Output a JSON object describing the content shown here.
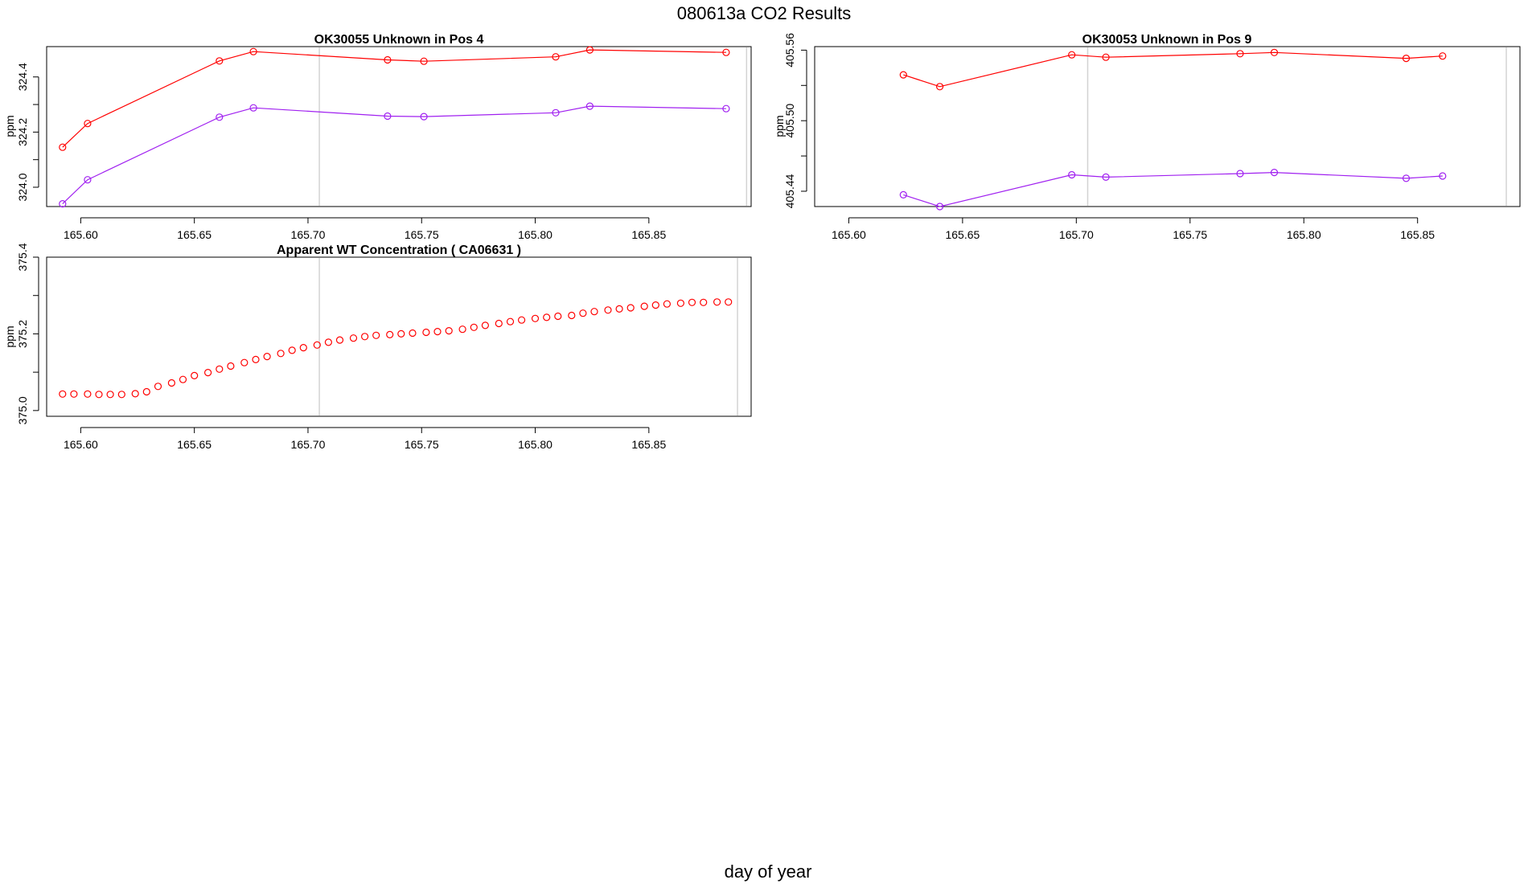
{
  "page": {
    "title": "080613a  CO2 Results",
    "x_caption": "day of year"
  },
  "chart_data": [
    {
      "id": "panel1",
      "type": "line",
      "title": "OK30055    Unknown in Pos 4",
      "xlabel": "",
      "ylabel": "ppm",
      "xlim": [
        165.585,
        165.895
      ],
      "ylim": [
        323.93,
        324.51
      ],
      "xticks": [
        165.6,
        165.65,
        165.7,
        165.75,
        165.8,
        165.85
      ],
      "xtick_labels": [
        "165.60",
        "165.65",
        "165.70",
        "165.75",
        "165.80",
        "165.85"
      ],
      "yticks": [
        324.0,
        324.2,
        324.4
      ],
      "ytick_labels": [
        "324.0",
        "324.2",
        "324.4"
      ],
      "vlines": [
        165.705,
        165.893
      ],
      "marker": "circle",
      "connected": true,
      "series": [
        {
          "name": "red",
          "color": "#ff0000",
          "x": [
            165.592,
            165.603,
            165.661,
            165.676,
            165.735,
            165.751,
            165.809,
            165.824,
            165.884
          ],
          "y": [
            324.145,
            324.231,
            324.458,
            324.492,
            324.462,
            324.457,
            324.473,
            324.498,
            324.489
          ]
        },
        {
          "name": "purple",
          "color": "#a020f0",
          "x": [
            165.592,
            165.603,
            165.661,
            165.676,
            165.735,
            165.751,
            165.809,
            165.824,
            165.884
          ],
          "y": [
            323.94,
            324.027,
            324.254,
            324.288,
            324.258,
            324.256,
            324.27,
            324.294,
            324.285
          ]
        }
      ]
    },
    {
      "id": "panel2",
      "type": "line",
      "title": "OK30053    Unknown in Pos 9",
      "xlabel": "",
      "ylabel": "ppm",
      "xlim": [
        165.585,
        165.895
      ],
      "ylim": [
        405.427,
        405.563
      ],
      "xticks": [
        165.6,
        165.65,
        165.7,
        165.75,
        165.8,
        165.85
      ],
      "xtick_labels": [
        "165.60",
        "165.65",
        "165.70",
        "165.75",
        "165.80",
        "165.85"
      ],
      "yticks": [
        405.44,
        405.5,
        405.56
      ],
      "ytick_labels": [
        "405.44",
        "405.50",
        "405.56"
      ],
      "vlines": [
        165.705,
        165.889
      ],
      "marker": "circle",
      "connected": true,
      "series": [
        {
          "name": "red",
          "color": "#ff0000",
          "x": [
            165.624,
            165.64,
            165.698,
            165.713,
            165.772,
            165.787,
            165.845,
            165.861
          ],
          "y": [
            405.539,
            405.529,
            405.556,
            405.554,
            405.557,
            405.558,
            405.553,
            405.555
          ]
        },
        {
          "name": "purple",
          "color": "#a020f0",
          "x": [
            165.624,
            165.64,
            165.698,
            165.713,
            165.772,
            165.787,
            165.845,
            165.861
          ],
          "y": [
            405.437,
            405.427,
            405.454,
            405.452,
            405.455,
            405.456,
            405.451,
            405.453
          ]
        }
      ]
    },
    {
      "id": "panel3",
      "type": "scatter",
      "title": "Apparent WT Concentration ( CA06631 )",
      "xlabel": "",
      "ylabel": "ppm",
      "xlim": [
        165.585,
        165.895
      ],
      "ylim": [
        374.985,
        375.4
      ],
      "xticks": [
        165.6,
        165.65,
        165.7,
        165.75,
        165.8,
        165.85
      ],
      "xtick_labels": [
        "165.60",
        "165.65",
        "165.70",
        "165.75",
        "165.80",
        "165.85"
      ],
      "yticks": [
        375.0,
        375.2,
        375.4
      ],
      "ytick_labels": [
        "375.0",
        "375.2",
        "375.4"
      ],
      "vlines": [
        165.705,
        165.889
      ],
      "marker": "circle",
      "connected": false,
      "series": [
        {
          "name": "red",
          "color": "#ff0000",
          "x": [
            165.592,
            165.597,
            165.603,
            165.608,
            165.613,
            165.618,
            165.624,
            165.629,
            165.634,
            165.64,
            165.645,
            165.65,
            165.656,
            165.661,
            165.666,
            165.672,
            165.677,
            165.682,
            165.688,
            165.693,
            165.698,
            165.704,
            165.709,
            165.714,
            165.72,
            165.725,
            165.73,
            165.736,
            165.741,
            165.746,
            165.752,
            165.757,
            165.762,
            165.768,
            165.773,
            165.778,
            165.784,
            165.789,
            165.794,
            165.8,
            165.805,
            165.81,
            165.816,
            165.821,
            165.826,
            165.832,
            165.837,
            165.842,
            165.848,
            165.853,
            165.858,
            165.864,
            165.869,
            165.874,
            165.88,
            165.885
          ],
          "y": [
            375.043,
            375.043,
            375.043,
            375.042,
            375.042,
            375.042,
            375.044,
            375.049,
            375.063,
            375.072,
            375.081,
            375.091,
            375.099,
            375.108,
            375.116,
            375.125,
            375.133,
            375.141,
            375.149,
            375.157,
            375.164,
            375.171,
            375.178,
            375.184,
            375.189,
            375.193,
            375.196,
            375.198,
            375.2,
            375.202,
            375.204,
            375.206,
            375.208,
            375.212,
            375.217,
            375.222,
            375.227,
            375.232,
            375.236,
            375.24,
            375.243,
            375.246,
            375.248,
            375.254,
            375.258,
            375.262,
            375.265,
            375.268,
            375.272,
            375.275,
            375.278,
            375.28,
            375.282,
            375.282,
            375.283,
            375.283
          ]
        }
      ]
    }
  ]
}
